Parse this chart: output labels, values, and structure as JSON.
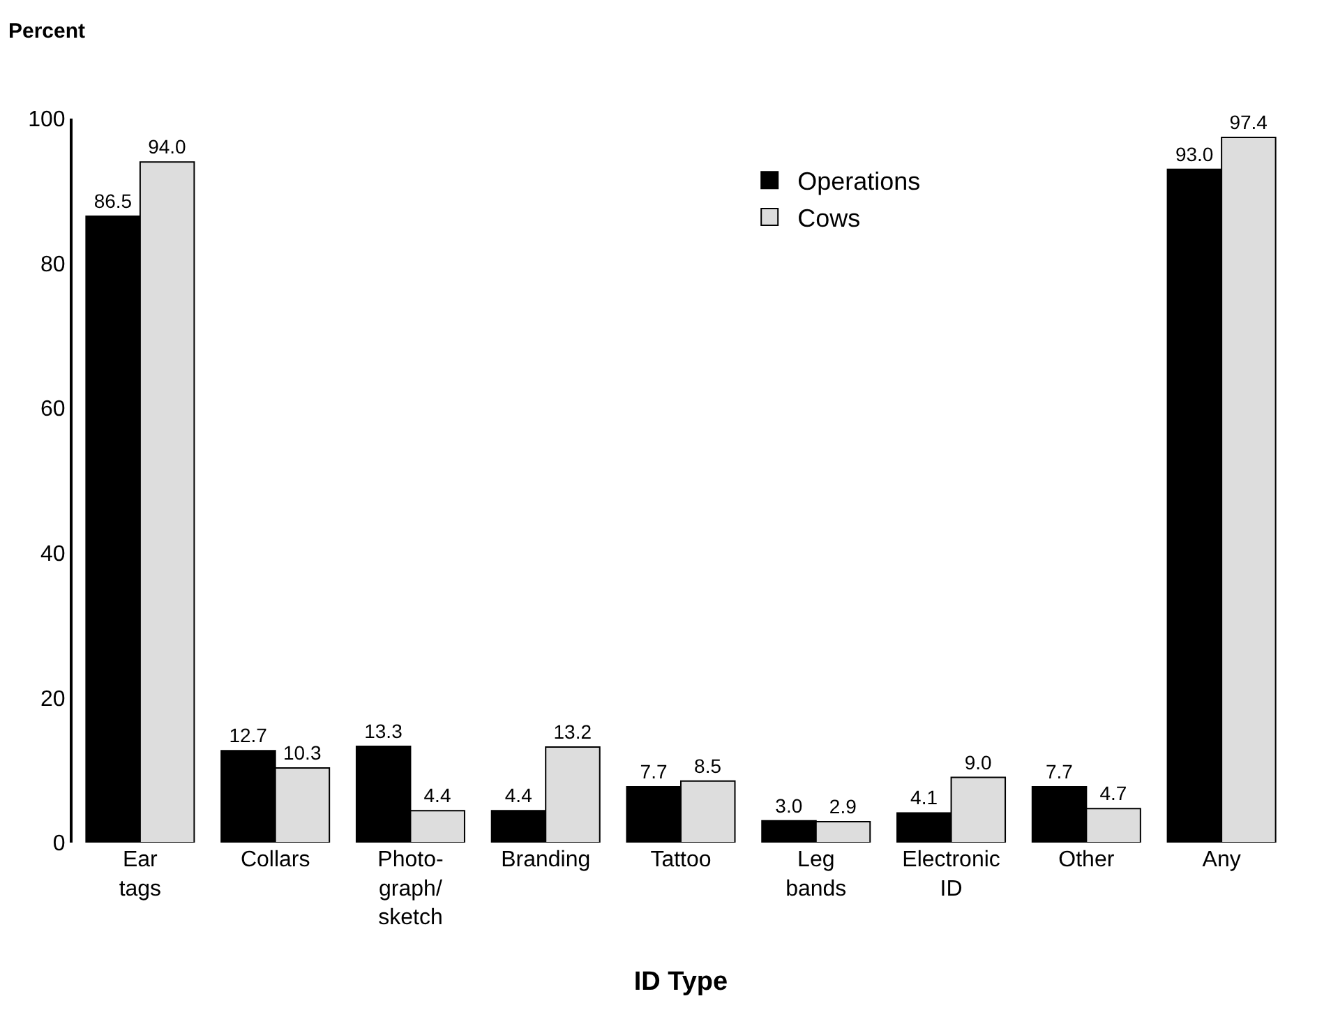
{
  "chart_data": {
    "type": "bar",
    "ylabel": "Percent",
    "xlabel": "ID Type",
    "categories": [
      "Ear\ntags",
      "Collars",
      "Photo-\ngraph/\nsketch",
      "Branding",
      "Tattoo",
      "Leg\nbands",
      "Electronic\nID",
      "Other",
      "Any"
    ],
    "series": [
      {
        "name": "Operations",
        "color": "#000000",
        "values": [
          86.5,
          12.7,
          13.3,
          4.4,
          7.7,
          3.0,
          4.1,
          7.7,
          93.0
        ],
        "value_labels": [
          "86.5",
          "12.7",
          "13.3",
          "4.4",
          "7.7",
          "3.0",
          "4.1",
          "7.7",
          "93.0"
        ]
      },
      {
        "name": "Cows",
        "color": "#dddddd",
        "values": [
          94.0,
          10.3,
          4.4,
          13.2,
          8.5,
          2.9,
          9.0,
          4.7,
          97.4
        ],
        "value_labels": [
          "94.0",
          "10.3",
          "4.4",
          "13.2",
          "8.5",
          "2.9",
          "9.0",
          "4.7",
          "97.4"
        ]
      }
    ],
    "ylim": [
      0,
      100
    ],
    "yticks": [
      0,
      20,
      40,
      60,
      80,
      100
    ],
    "legend": "top"
  }
}
